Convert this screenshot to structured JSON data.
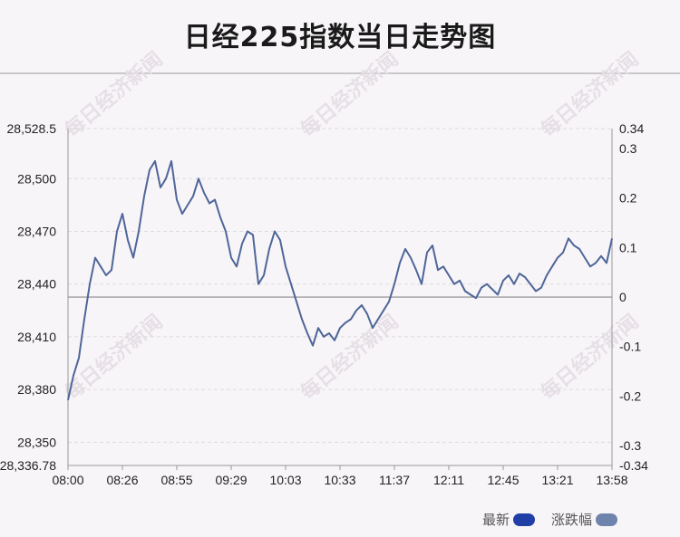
{
  "title": "日经225指数当日走势图",
  "watermark": "每日经济新闻",
  "legend": [
    {
      "label": "最新",
      "color": "#1f3fa6"
    },
    {
      "label": "涨跌幅",
      "color": "#6f84ad"
    }
  ],
  "chart_data": {
    "type": "line",
    "title": "日经225指数当日走势图",
    "x_ticks": [
      "08:00",
      "08:26",
      "08:55",
      "09:29",
      "10:03",
      "10:33",
      "11:37",
      "12:11",
      "12:45",
      "13:21",
      "13:58"
    ],
    "y_left_ticks": [
      "28,528.5",
      "28,500",
      "28,470",
      "28,440",
      "28,410",
      "28,380",
      "28,350",
      "28,336.78"
    ],
    "y_left_values": [
      28528.5,
      28500,
      28470,
      28440,
      28410,
      28380,
      28350,
      28336.78
    ],
    "y_right_ticks": [
      "0.34",
      "0.3",
      "0.2",
      "0.1",
      "0",
      "-0.1",
      "-0.2",
      "-0.3",
      "-0.34"
    ],
    "y_right_values": [
      0.34,
      0.3,
      0.2,
      0.1,
      0,
      -0.1,
      -0.2,
      -0.3,
      -0.34
    ],
    "ylim_left": [
      28336.78,
      28528.5
    ],
    "ylim_right": [
      -0.34,
      0.34
    ],
    "baseline": 28432.6,
    "series": [
      {
        "color": "#4e6699",
        "x_index": [
          0,
          2,
          4,
          6,
          8,
          10,
          12,
          14,
          16,
          18,
          20,
          22,
          24,
          26,
          28,
          30,
          32,
          34,
          36,
          38,
          40,
          42,
          44,
          46,
          48,
          50,
          52,
          54,
          56,
          58,
          60,
          62,
          64,
          66,
          68,
          70,
          72,
          74,
          76,
          78,
          80,
          82,
          84,
          86,
          88,
          90,
          92,
          94,
          96,
          98,
          100,
          102,
          104,
          106,
          108,
          110,
          112,
          114,
          116,
          118,
          120,
          122,
          124,
          126,
          128,
          130,
          132,
          134,
          136,
          138,
          140,
          142,
          144,
          146,
          148,
          150,
          152,
          154,
          156,
          158,
          160,
          162,
          164,
          166,
          168,
          170,
          172,
          174,
          176,
          178,
          180,
          182,
          184,
          186,
          188,
          190,
          192,
          194,
          196,
          198,
          200
        ],
        "values": [
          28374,
          28388,
          28398,
          28420,
          28440,
          28455,
          28450,
          28445,
          28448,
          28470,
          28480,
          28465,
          28455,
          28470,
          28490,
          28505,
          28510,
          28495,
          28500,
          28510,
          28488,
          28480,
          28485,
          28490,
          28500,
          28492,
          28486,
          28488,
          28478,
          28470,
          28455,
          28450,
          28463,
          28470,
          28468,
          28440,
          28445,
          28460,
          28470,
          28465,
          28450,
          28440,
          28430,
          28420,
          28412,
          28405,
          28415,
          28410,
          28412,
          28408,
          28415,
          28418,
          28420,
          28425,
          28428,
          28423,
          28415,
          28420,
          28425,
          28430,
          28440,
          28452,
          28460,
          28455,
          28448,
          28440,
          28458,
          28462,
          28448,
          28450,
          28445,
          28440,
          28442,
          28436,
          28434,
          28432,
          28438,
          28440,
          28437,
          28434,
          28442,
          28445,
          28440,
          28446,
          28444,
          28440,
          28436,
          28438,
          28445,
          28450,
          28455,
          28458,
          28466,
          28462,
          28460,
          28455,
          28450,
          28452,
          28456,
          28452,
          28466
        ]
      }
    ]
  }
}
